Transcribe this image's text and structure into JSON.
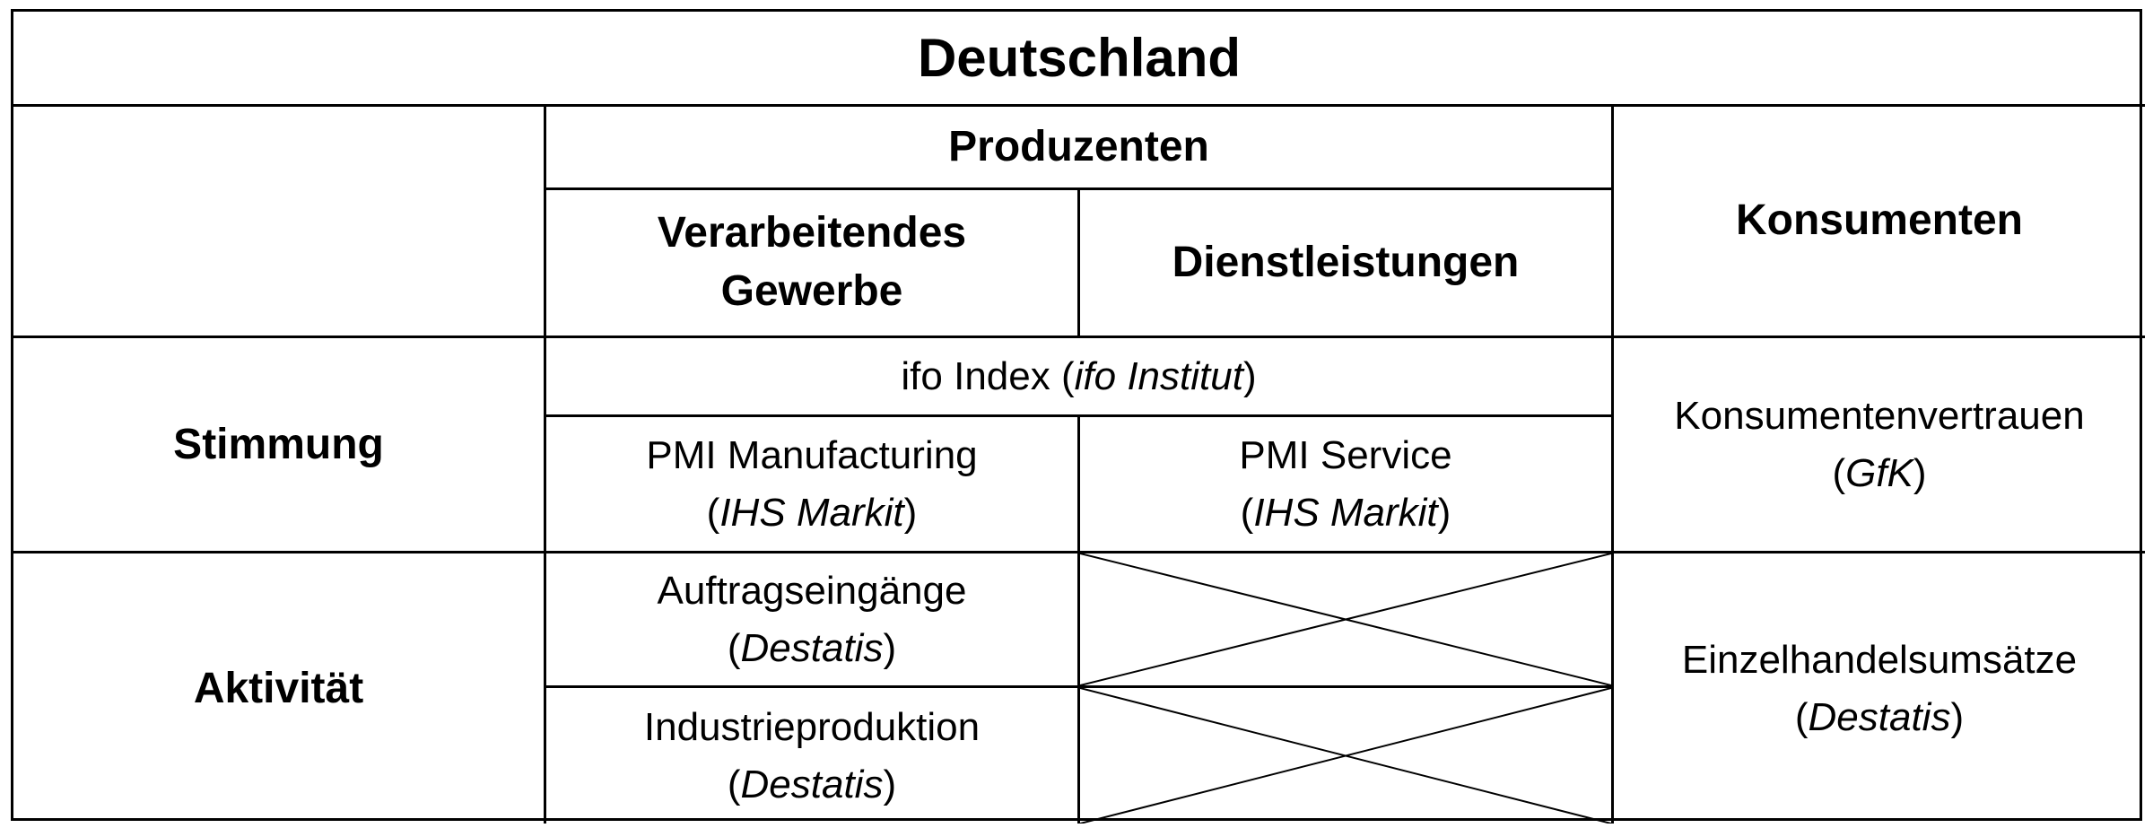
{
  "table": {
    "title": "Deutschland",
    "producers_header": "Produzenten",
    "manufacturing_header": "Verarbeitendes Gewerbe",
    "manufacturing_header_line1": "Verarbeitendes",
    "manufacturing_header_line2": "Gewerbe",
    "services_header": "Dienstleistungen",
    "consumers_header": "Konsumenten",
    "rows": {
      "sentiment": {
        "label": "Stimmung",
        "ifo": {
          "name": "ifo Index (",
          "source": "ifo Institut",
          "close": ")"
        },
        "pmi_manufacturing": {
          "name": "PMI Manufacturing",
          "open": "(",
          "source": "IHS Markit",
          "close": ")"
        },
        "pmi_service": {
          "name": "PMI Service",
          "open": "(",
          "source": "IHS Markit",
          "close": ")"
        },
        "consumer_confidence": {
          "name": "Konsumentenvertrauen",
          "open": "(",
          "source": "GfK",
          "close": ")"
        }
      },
      "activity": {
        "label": "Aktivität",
        "orders": {
          "name": "Auftragseingänge",
          "open": "(",
          "source": "Destatis",
          "close": ")"
        },
        "industrial_production": {
          "name": "Industrieproduktion",
          "open": "(",
          "source": "Destatis",
          "close": ")"
        },
        "retail_sales": {
          "name": "Einzelhandelsumsätze",
          "open": "(",
          "source": "Destatis",
          "close": ")"
        }
      }
    }
  }
}
